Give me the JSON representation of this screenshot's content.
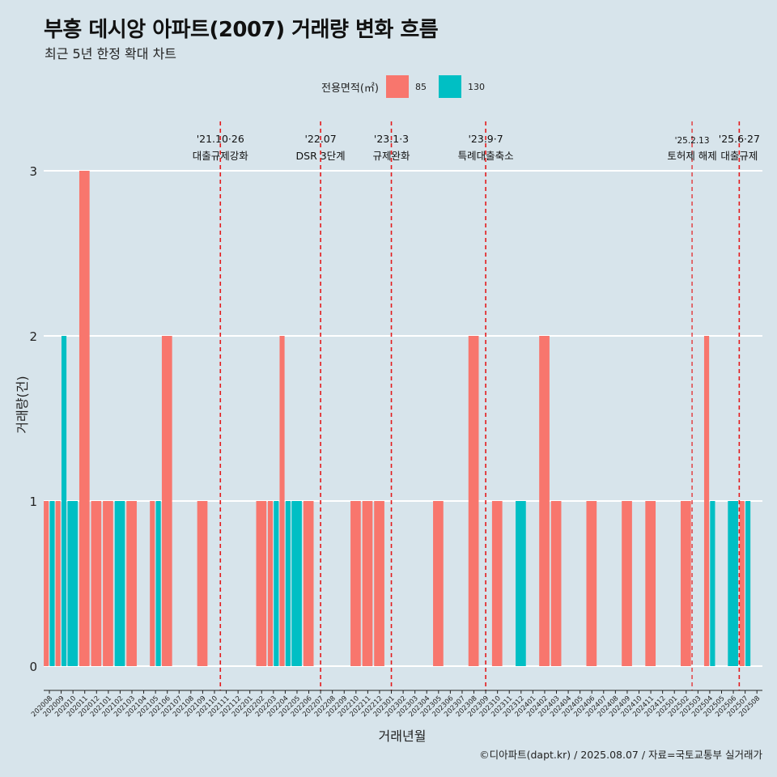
{
  "header": {
    "title": "부흥 데시앙 아파트(2007) 거래량 변화 흐름",
    "subtitle": "최근 5년 한정 확대 차트"
  },
  "legend": {
    "title": "전용면적(㎡)",
    "items": [
      {
        "label": "85",
        "color": "#f8766d"
      },
      {
        "label": "130",
        "color": "#00bfc4"
      }
    ]
  },
  "caption": "©디아파트(dapt.kr) / 2025.08.07 / 자료=국토교통부 실거래가",
  "chart_data": {
    "type": "bar",
    "title": "부흥 데시앙 아파트(2007) 거래량 변화 흐름",
    "subtitle": "최근 5년 한정 확대 차트",
    "xlabel": "거래년월",
    "ylabel": "거래량(건)",
    "ylim": [
      0,
      3
    ],
    "yticks": [
      0,
      1,
      2,
      3
    ],
    "grid": true,
    "legend_position": "top",
    "categories": [
      "202008",
      "202009",
      "202010",
      "202011",
      "202012",
      "202101",
      "202102",
      "202103",
      "202104",
      "202105",
      "202106",
      "202107",
      "202108",
      "202109",
      "202110",
      "202111",
      "202112",
      "202201",
      "202202",
      "202203",
      "202204",
      "202205",
      "202206",
      "202207",
      "202208",
      "202209",
      "202210",
      "202211",
      "202212",
      "202301",
      "202302",
      "202303",
      "202304",
      "202305",
      "202306",
      "202307",
      "202308",
      "202309",
      "202310",
      "202311",
      "202312",
      "202401",
      "202402",
      "202403",
      "202404",
      "202405",
      "202406",
      "202407",
      "202408",
      "202409",
      "202410",
      "202411",
      "202412",
      "202501",
      "202502",
      "202503",
      "202504",
      "202505",
      "202506",
      "202507",
      "202508"
    ],
    "series": [
      {
        "name": "85",
        "color": "#f8766d",
        "values": [
          1,
          1,
          0,
          3,
          1,
          1,
          0,
          1,
          0,
          1,
          2,
          0,
          0,
          1,
          0,
          0,
          0,
          0,
          1,
          1,
          2,
          0,
          1,
          0,
          0,
          0,
          1,
          1,
          1,
          0,
          0,
          0,
          0,
          1,
          0,
          0,
          2,
          0,
          1,
          0,
          0,
          0,
          2,
          1,
          0,
          0,
          1,
          0,
          0,
          1,
          0,
          1,
          0,
          0,
          1,
          0,
          2,
          0,
          0,
          1,
          0
        ]
      },
      {
        "name": "130",
        "color": "#00bfc4",
        "values": [
          1,
          2,
          1,
          0,
          0,
          0,
          1,
          0,
          0,
          1,
          0,
          0,
          0,
          0,
          0,
          0,
          0,
          0,
          0,
          1,
          1,
          1,
          0,
          0,
          0,
          0,
          0,
          0,
          0,
          0,
          0,
          0,
          0,
          0,
          0,
          0,
          0,
          0,
          0,
          0,
          1,
          0,
          0,
          0,
          0,
          0,
          0,
          0,
          0,
          0,
          0,
          0,
          0,
          0,
          0,
          0,
          1,
          0,
          1,
          1,
          0
        ]
      }
    ],
    "annotations": [
      {
        "date": "'21.10·26",
        "text": "대출규제강화",
        "at": 14,
        "offset": 0.5
      },
      {
        "date": "'22.07",
        "text": "DSR 3단계",
        "at": 23,
        "offset": 0
      },
      {
        "date": "'23.1·3",
        "text": "규제완화",
        "at": 29,
        "offset": 0
      },
      {
        "date": "'23.9·7",
        "text": "특례대출축소",
        "at": 37,
        "offset": 0
      },
      {
        "date": "'25.2.13",
        "text": "토허제 해제",
        "at": 54,
        "offset": 0.5,
        "small": true
      },
      {
        "date": "'25.6·27",
        "text": "대출규제",
        "at": 58,
        "offset": 0.5
      }
    ]
  }
}
